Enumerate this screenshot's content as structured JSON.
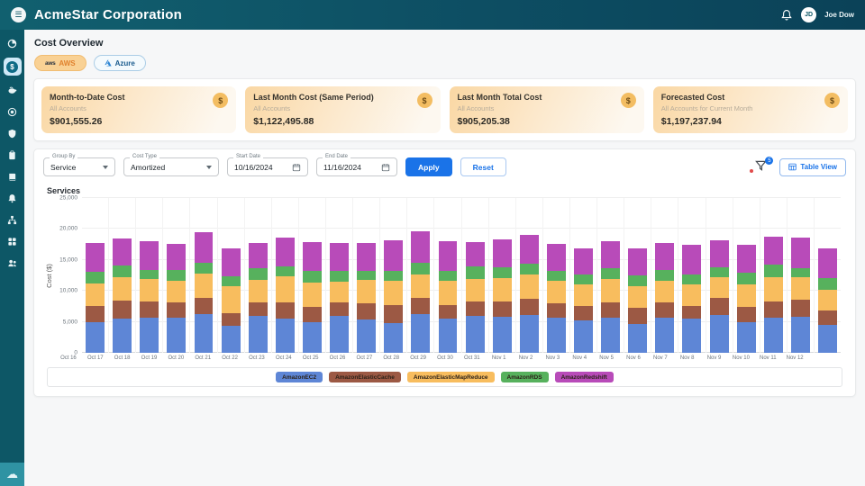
{
  "header": {
    "title": "AcmeStar Corporation",
    "user_initials": "JD",
    "user_name": "Joe Dow"
  },
  "page": {
    "title": "Cost Overview"
  },
  "tabs": {
    "aws_logo": "aws",
    "aws": "AWS",
    "azure": "Azure"
  },
  "cards": [
    {
      "title": "Month-to-Date Cost",
      "subtitle": "All Accounts",
      "value": "$901,555.26",
      "icon": "$"
    },
    {
      "title": "Last Month Cost (Same Period)",
      "subtitle": "All Accounts",
      "value": "$1,122,495.88",
      "icon": "$"
    },
    {
      "title": "Last Month Total Cost",
      "subtitle": "All Accounts",
      "value": "$905,205.38",
      "icon": "$"
    },
    {
      "title": "Forecasted Cost",
      "subtitle": "All Accounts for Current Month",
      "value": "$1,197,237.94",
      "icon": "$"
    }
  ],
  "filters": {
    "group_by_label": "Group By",
    "group_by_value": "Service",
    "cost_type_label": "Cost Type",
    "cost_type_value": "Amortized",
    "start_date_label": "Start Date",
    "start_date_value": "10/16/2024",
    "end_date_label": "End Date",
    "end_date_value": "11/16/2024",
    "apply_label": "Apply",
    "reset_label": "Reset",
    "filter_badge_count": "5",
    "table_view_label": "Table View"
  },
  "chart_data": {
    "type": "bar",
    "stacked": true,
    "title": "Services",
    "xlabel": "",
    "ylabel": "Cost ($)",
    "ylim": [
      0,
      25000
    ],
    "yticks": [
      0,
      5000,
      10000,
      15000,
      20000,
      25000
    ],
    "ytick_labels": [
      "0",
      "5,000",
      "10,000",
      "15,000",
      "20,000",
      "25,000"
    ],
    "grid": true,
    "legend_position": "bottom",
    "categories": [
      "Oct 16",
      "Oct 17",
      "Oct 18",
      "Oct 19",
      "Oct 20",
      "Oct 21",
      "Oct 22",
      "Oct 23",
      "Oct 24",
      "Oct 25",
      "Oct 26",
      "Oct 27",
      "Oct 28",
      "Oct 29",
      "Oct 30",
      "Oct 31",
      "Nov 1",
      "Nov 2",
      "Nov 3",
      "Nov 4",
      "Nov 5",
      "Nov 6",
      "Nov 7",
      "Nov 8",
      "Nov 9",
      "Nov 10",
      "Nov 11",
      "Nov 12"
    ],
    "series": [
      {
        "name": "AmazonEC2",
        "color": "#5e86d6",
        "values": [
          4900,
          5500,
          5600,
          5700,
          6200,
          4300,
          5900,
          5500,
          5000,
          5900,
          5400,
          4800,
          6300,
          5500,
          6000,
          5800,
          6100,
          5600,
          5200,
          5700,
          4700,
          5600,
          5500,
          6100,
          4900,
          5700,
          5800,
          4500
        ]
      },
      {
        "name": "AmazonElasticCache",
        "color": "#9c5944",
        "values": [
          2600,
          3000,
          2700,
          2500,
          2700,
          2100,
          2300,
          2700,
          2400,
          2200,
          2600,
          2900,
          2600,
          2200,
          2300,
          2500,
          2600,
          2400,
          2300,
          2500,
          2600,
          2500,
          2100,
          2700,
          2500,
          2600,
          2800,
          2400
        ]
      },
      {
        "name": "AmazonElasticMapReduce",
        "color": "#f8bd5e",
        "values": [
          3700,
          3700,
          3600,
          3400,
          3900,
          4300,
          3600,
          4100,
          4000,
          3400,
          3800,
          3900,
          3800,
          4000,
          3600,
          3700,
          3900,
          3600,
          3500,
          3700,
          3500,
          3600,
          3500,
          3400,
          3700,
          3900,
          3600,
          3300
        ]
      },
      {
        "name": "AmazonRDS",
        "color": "#57b15d",
        "values": [
          1900,
          1900,
          1500,
          1800,
          1700,
          1700,
          1800,
          1600,
          1800,
          1700,
          1500,
          1700,
          1900,
          1600,
          2000,
          1800,
          1800,
          1600,
          1700,
          1800,
          1700,
          1700,
          1500,
          1600,
          1800,
          2000,
          1500,
          1900
        ]
      },
      {
        "name": "AmazonRedshift",
        "color": "#b84bb9",
        "values": [
          4700,
          4300,
          4700,
          4200,
          5000,
          4500,
          4200,
          4700,
          4700,
          4600,
          4400,
          4900,
          5100,
          4800,
          4000,
          4500,
          4600,
          4400,
          4200,
          4400,
          4300,
          4400,
          4800,
          4400,
          4600,
          4500,
          4900,
          4700
        ]
      }
    ]
  }
}
